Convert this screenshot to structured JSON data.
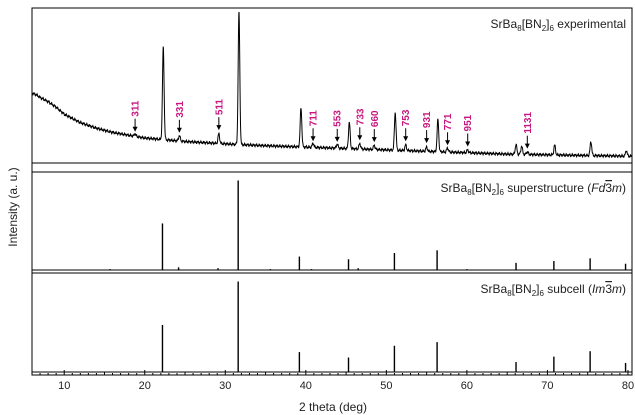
{
  "chart_data": {
    "type": "line",
    "xlabel": "2 theta (deg)",
    "ylabel": "Intensity (a. u.)",
    "xlim": [
      6,
      80.5
    ],
    "xticks": [
      "10",
      "20",
      "30",
      "40",
      "50",
      "60",
      "70",
      "80"
    ],
    "xtick_values": [
      10,
      20,
      30,
      40,
      50,
      60,
      70,
      80
    ],
    "colors": {
      "line": "#000000",
      "annotation": "#c8177f"
    },
    "panels": [
      {
        "id": "experimental",
        "label_text": "SrBa8[BN2]6 experimental",
        "label": {
          "pre": "SrBa",
          "sub1": "8",
          "mid": "[BN",
          "sub2": "2",
          "post": "]",
          "sub3": "6",
          "tail": " experimental",
          "group_pre": "",
          "group_italic1": "",
          "group_bar": "",
          "group_italic2": "",
          "group_post": ""
        },
        "ylim": [
          0,
          1.05
        ],
        "background": [
          [
            6.0,
            0.47
          ],
          [
            6.5,
            0.46
          ],
          [
            7.0,
            0.44
          ],
          [
            8.0,
            0.41
          ],
          [
            9.0,
            0.37
          ],
          [
            10.0,
            0.32
          ],
          [
            11.0,
            0.29
          ],
          [
            12.0,
            0.26
          ],
          [
            13.0,
            0.24
          ],
          [
            14.0,
            0.22
          ],
          [
            16.0,
            0.19
          ],
          [
            18.0,
            0.17
          ],
          [
            20.0,
            0.15
          ],
          [
            22.0,
            0.14
          ],
          [
            25.0,
            0.125
          ],
          [
            28.0,
            0.115
          ],
          [
            31.0,
            0.105
          ],
          [
            35.0,
            0.095
          ],
          [
            40.0,
            0.085
          ],
          [
            45.0,
            0.075
          ],
          [
            50.0,
            0.065
          ],
          [
            55.0,
            0.055
          ],
          [
            60.0,
            0.045
          ],
          [
            65.0,
            0.035
          ],
          [
            70.0,
            0.03
          ],
          [
            75.0,
            0.025
          ],
          [
            80.5,
            0.02
          ]
        ],
        "peaks": [
          {
            "x": 18.8,
            "h": 0.018
          },
          {
            "x": 22.3,
            "h": 0.66
          },
          {
            "x": 24.3,
            "h": 0.04
          },
          {
            "x": 29.2,
            "h": 0.07
          },
          {
            "x": 31.7,
            "h": 0.95
          },
          {
            "x": 39.4,
            "h": 0.28
          },
          {
            "x": 40.9,
            "h": 0.03
          },
          {
            "x": 43.9,
            "h": 0.03
          },
          {
            "x": 45.4,
            "h": 0.19
          },
          {
            "x": 46.7,
            "h": 0.04
          },
          {
            "x": 48.5,
            "h": 0.03
          },
          {
            "x": 51.1,
            "h": 0.27
          },
          {
            "x": 52.4,
            "h": 0.04
          },
          {
            "x": 55.0,
            "h": 0.03
          },
          {
            "x": 56.4,
            "h": 0.23
          },
          {
            "x": 57.6,
            "h": 0.03
          },
          {
            "x": 60.1,
            "h": 0.02
          },
          {
            "x": 66.1,
            "h": 0.07
          },
          {
            "x": 66.8,
            "h": 0.06
          },
          {
            "x": 67.5,
            "h": 0.02
          },
          {
            "x": 70.9,
            "h": 0.07
          },
          {
            "x": 75.4,
            "h": 0.1
          },
          {
            "x": 79.8,
            "h": 0.04
          }
        ],
        "annotations": [
          {
            "label": "311",
            "x": 18.8
          },
          {
            "label": "331",
            "x": 24.3
          },
          {
            "label": "511",
            "x": 29.2
          },
          {
            "label": "711",
            "x": 40.9
          },
          {
            "label": "553",
            "x": 43.9
          },
          {
            "label": "733",
            "x": 46.7
          },
          {
            "label": "660",
            "x": 48.5
          },
          {
            "label": "753",
            "x": 52.4
          },
          {
            "label": "931",
            "x": 55.0
          },
          {
            "label": "771",
            "x": 57.6
          },
          {
            "label": "951",
            "x": 60.1
          },
          {
            "label": "1131",
            "x": 67.5
          }
        ]
      },
      {
        "id": "superstructure",
        "label_text": "SrBa8[BN2]6 superstructure (Fd3m)",
        "label": {
          "pre": "SrBa",
          "sub1": "8",
          "mid": "[BN",
          "sub2": "2",
          "post": "]",
          "sub3": "6",
          "tail": " superstructure",
          "group_pre": " (",
          "group_italic1": "Fd",
          "group_bar": "3",
          "group_italic2": "m",
          "group_post": ")"
        },
        "ylim": [
          0,
          1.05
        ],
        "sticks": [
          {
            "x": 15.7,
            "h": 0.01
          },
          {
            "x": 22.2,
            "h": 0.52
          },
          {
            "x": 24.2,
            "h": 0.03
          },
          {
            "x": 29.1,
            "h": 0.02
          },
          {
            "x": 31.6,
            "h": 1.0
          },
          {
            "x": 35.6,
            "h": 0.01
          },
          {
            "x": 39.2,
            "h": 0.15
          },
          {
            "x": 40.7,
            "h": 0.01
          },
          {
            "x": 45.3,
            "h": 0.12
          },
          {
            "x": 46.5,
            "h": 0.02
          },
          {
            "x": 51.0,
            "h": 0.19
          },
          {
            "x": 56.3,
            "h": 0.22
          },
          {
            "x": 60.0,
            "h": 0.01
          },
          {
            "x": 66.1,
            "h": 0.08
          },
          {
            "x": 70.8,
            "h": 0.1
          },
          {
            "x": 75.3,
            "h": 0.13
          },
          {
            "x": 79.7,
            "h": 0.07
          }
        ]
      },
      {
        "id": "subcell",
        "label_text": "SrBa8[BN2]6 subcell (Im3m)",
        "label": {
          "pre": "SrBa",
          "sub1": "8",
          "mid": "[BN",
          "sub2": "2",
          "post": "]",
          "sub3": "6",
          "tail": " subcell",
          "group_pre": " (",
          "group_italic1": "Im",
          "group_bar": "3",
          "group_italic2": "m",
          "group_post": ")"
        },
        "ylim": [
          0,
          1.05
        ],
        "sticks": [
          {
            "x": 22.2,
            "h": 0.52
          },
          {
            "x": 31.6,
            "h": 1.0
          },
          {
            "x": 39.2,
            "h": 0.22
          },
          {
            "x": 45.3,
            "h": 0.16
          },
          {
            "x": 51.0,
            "h": 0.29
          },
          {
            "x": 56.3,
            "h": 0.33
          },
          {
            "x": 66.1,
            "h": 0.11
          },
          {
            "x": 70.8,
            "h": 0.17
          },
          {
            "x": 75.3,
            "h": 0.23
          },
          {
            "x": 79.7,
            "h": 0.1
          }
        ]
      }
    ]
  }
}
